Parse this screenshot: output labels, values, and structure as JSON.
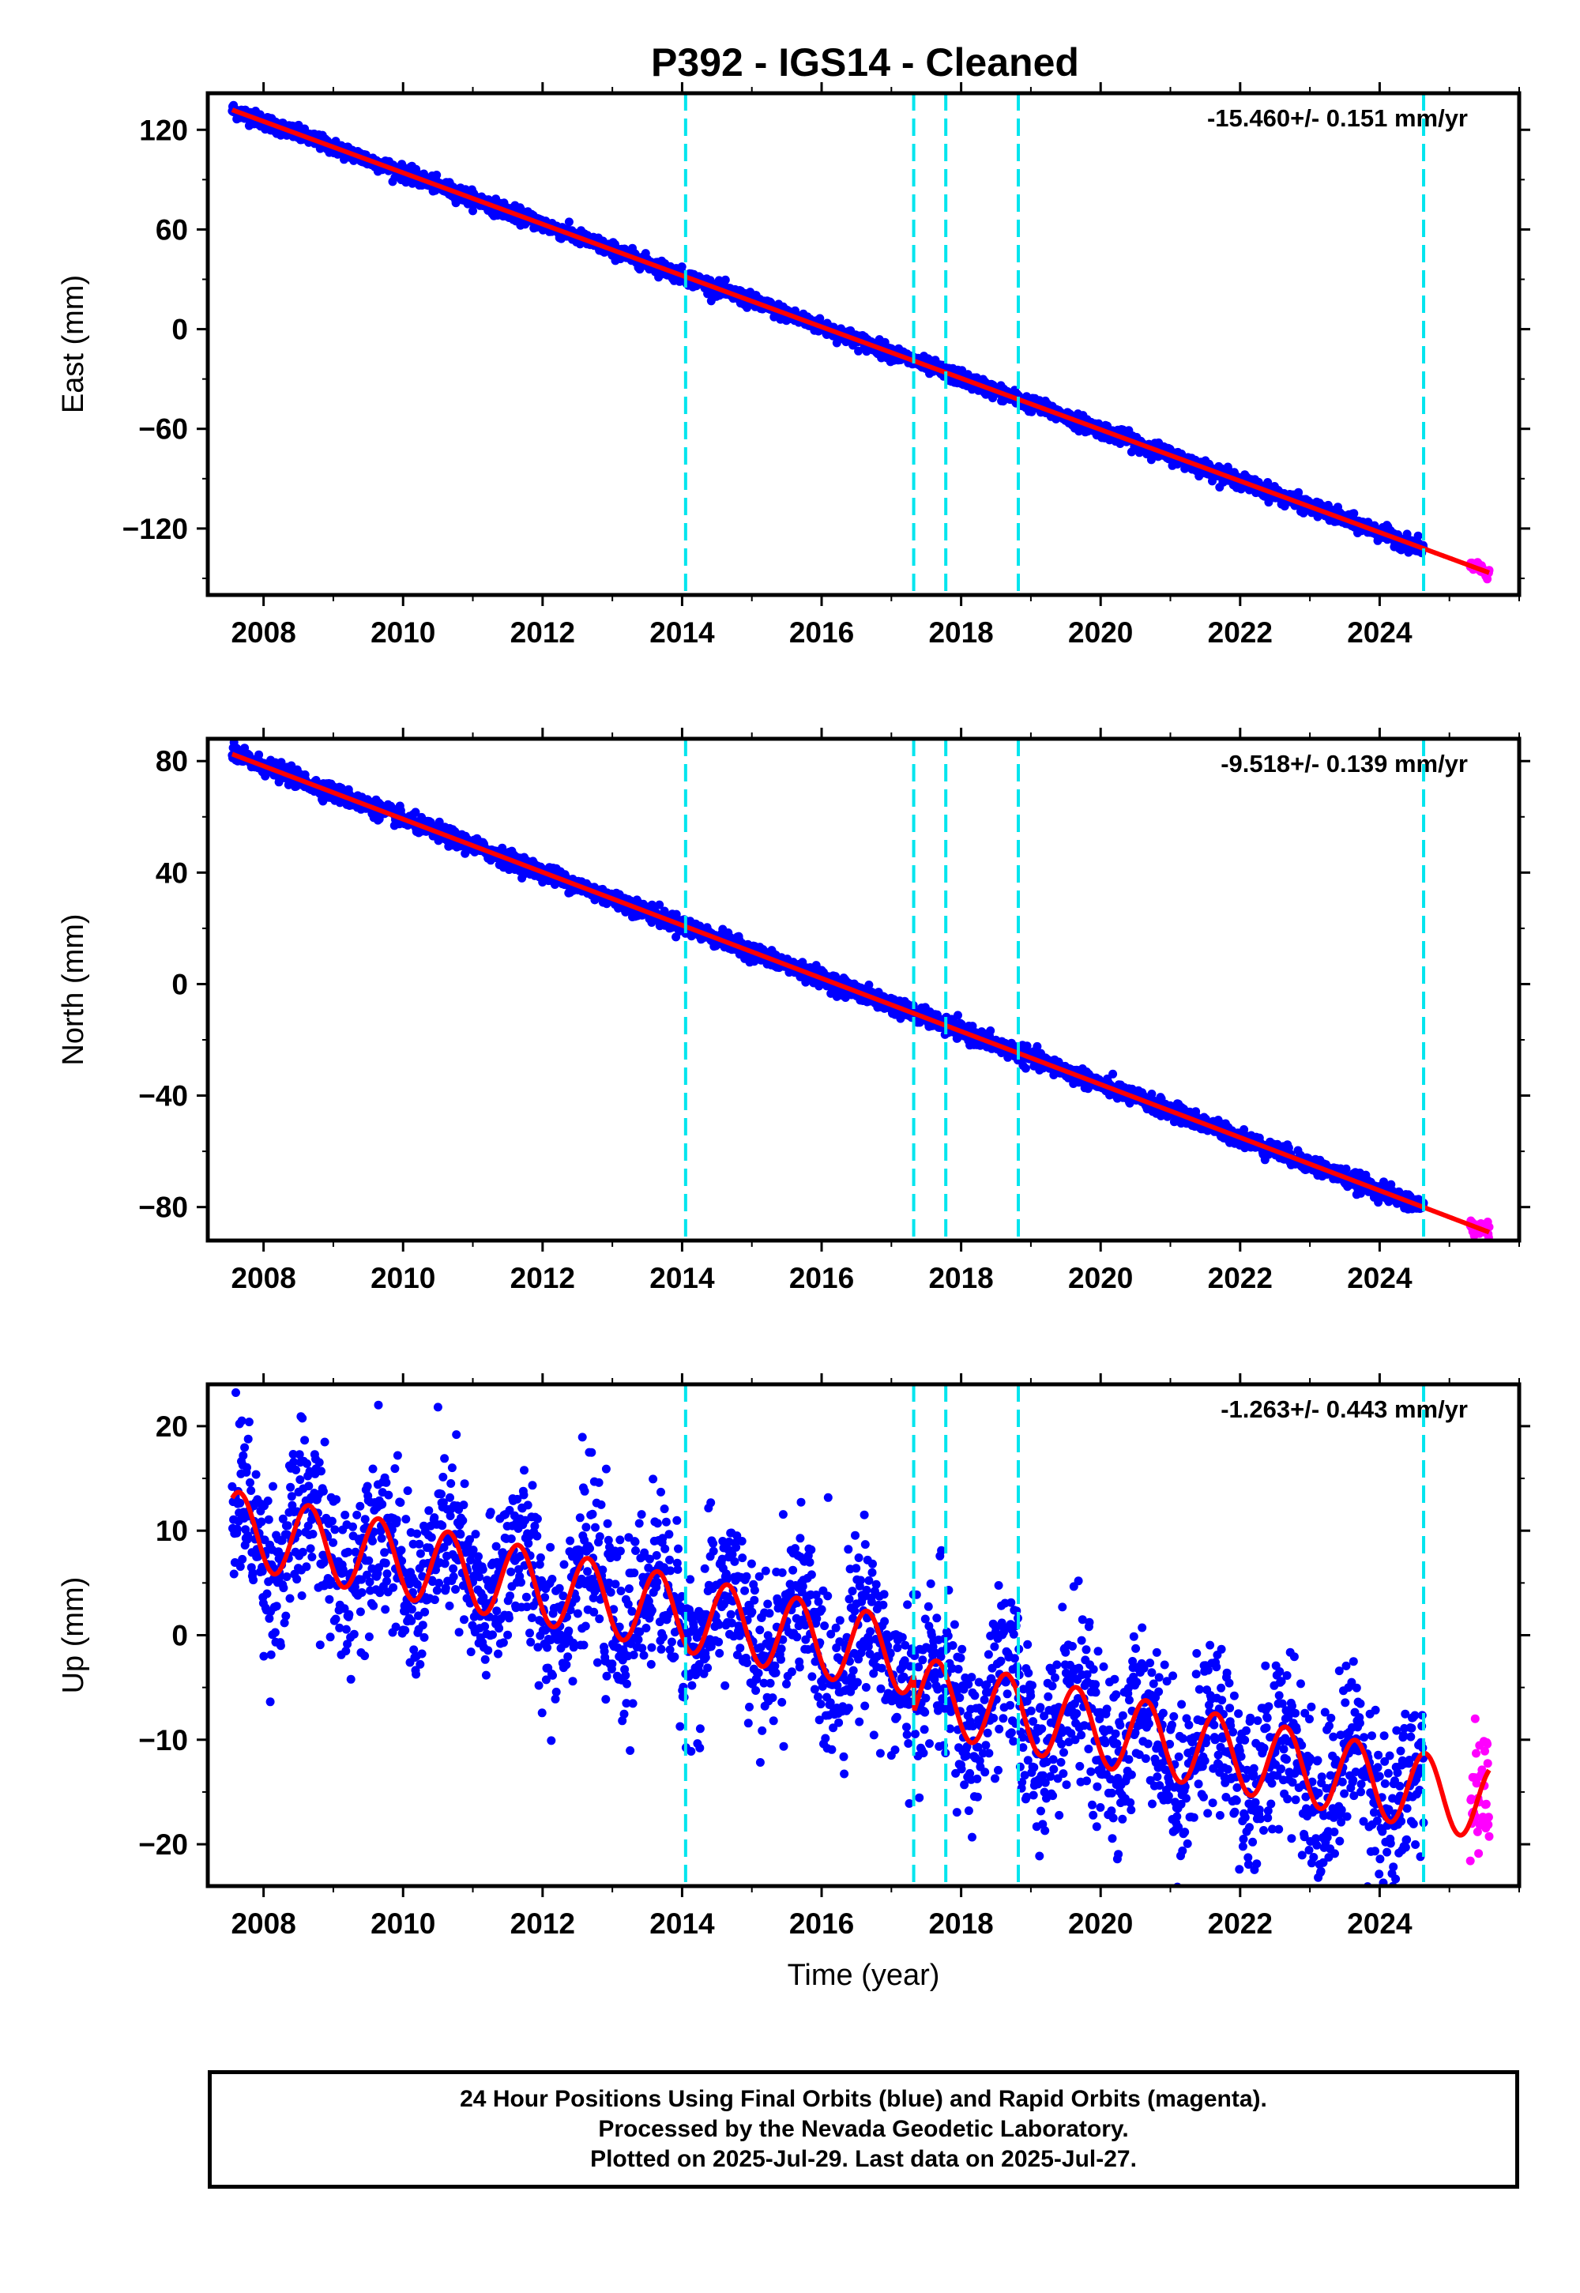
{
  "title": "P392  - IGS14 - Cleaned",
  "footer": {
    "line1": "24 Hour Positions Using Final Orbits (blue) and Rapid Orbits (magenta).",
    "line2": "Processed by the Nevada Geodetic Laboratory.",
    "line3": "Plotted on 2025-Jul-29. Last data on 2025-Jul-27."
  },
  "colors": {
    "final": "#0000ff",
    "rapid": "#ff00ff",
    "model": "#ff0000",
    "steps": "#00e5ee"
  },
  "chart_data": [
    {
      "type": "scatter",
      "component": "east",
      "ylabel": "East (mm)",
      "xlabel": "",
      "rate_text": "-15.460+/- 0.151 mm/yr",
      "rate": -15.46,
      "model_offset": 132,
      "model_ref_year": 2007.55,
      "xlim": [
        2007.2,
        2026.0
      ],
      "ylim": [
        -160,
        142
      ],
      "yticks": [
        120,
        60,
        0,
        -60,
        -120
      ],
      "ytick_labels": [
        "120",
        "60",
        "0",
        "−60",
        "−120"
      ],
      "xticks": [
        2008,
        2010,
        2012,
        2014,
        2016,
        2018,
        2020,
        2022,
        2024
      ],
      "xtick_labels": [
        "2008",
        "2010",
        "2012",
        "2014",
        "2016",
        "2018",
        "2020",
        "2022",
        "2024"
      ],
      "final_range": [
        2007.55,
        2024.63
      ],
      "rapid_range": [
        2025.3,
        2025.57
      ],
      "scatter_mm": 2.2,
      "seasonal_amp": 0,
      "steps": [
        2014.05,
        2017.32,
        2017.78,
        2018.82,
        2024.63
      ]
    },
    {
      "type": "scatter",
      "component": "north",
      "ylabel": "North (mm)",
      "xlabel": "",
      "rate_text": "-9.518+/- 0.139 mm/yr",
      "rate": -9.518,
      "model_offset": 82.5,
      "model_ref_year": 2007.55,
      "xlim": [
        2007.2,
        2026.0
      ],
      "ylim": [
        -92,
        88
      ],
      "yticks": [
        80,
        40,
        0,
        -40,
        -80
      ],
      "ytick_labels": [
        "80",
        "40",
        "0",
        "−40",
        "−80"
      ],
      "xticks": [
        2008,
        2010,
        2012,
        2014,
        2016,
        2018,
        2020,
        2022,
        2024
      ],
      "xtick_labels": [
        "2008",
        "2010",
        "2012",
        "2014",
        "2016",
        "2018",
        "2020",
        "2022",
        "2024"
      ],
      "final_range": [
        2007.55,
        2024.63
      ],
      "rapid_range": [
        2025.3,
        2025.57
      ],
      "scatter_mm": 1.5,
      "seasonal_amp": 0,
      "steps": [
        2014.05,
        2017.32,
        2017.78,
        2018.82,
        2024.63
      ]
    },
    {
      "type": "scatter",
      "component": "up",
      "ylabel": "Up (mm)",
      "xlabel": "Time (year)",
      "rate_text": "-1.263+/- 0.443 mm/yr",
      "rate": -1.263,
      "model_offset": 10.2,
      "model_ref_year": 2007.55,
      "xlim": [
        2007.2,
        2026.0
      ],
      "ylim": [
        -24,
        24
      ],
      "yticks": [
        20,
        10,
        0,
        -10,
        -20
      ],
      "ytick_labels": [
        "20",
        "10",
        "0",
        "−10",
        "−20"
      ],
      "xticks": [
        2008,
        2010,
        2012,
        2014,
        2016,
        2018,
        2020,
        2022,
        2024
      ],
      "xtick_labels": [
        "2008",
        "2010",
        "2012",
        "2014",
        "2016",
        "2018",
        "2020",
        "2022",
        "2024"
      ],
      "final_range": [
        2007.55,
        2024.63
      ],
      "rapid_range": [
        2025.3,
        2025.57
      ],
      "scatter_mm": 4.0,
      "seasonal_amp": 3.6,
      "step_offset_mm": -3.5,
      "step_offset_year": 2017.32,
      "steps": [
        2014.05,
        2017.32,
        2017.78,
        2018.82,
        2024.63
      ]
    }
  ]
}
